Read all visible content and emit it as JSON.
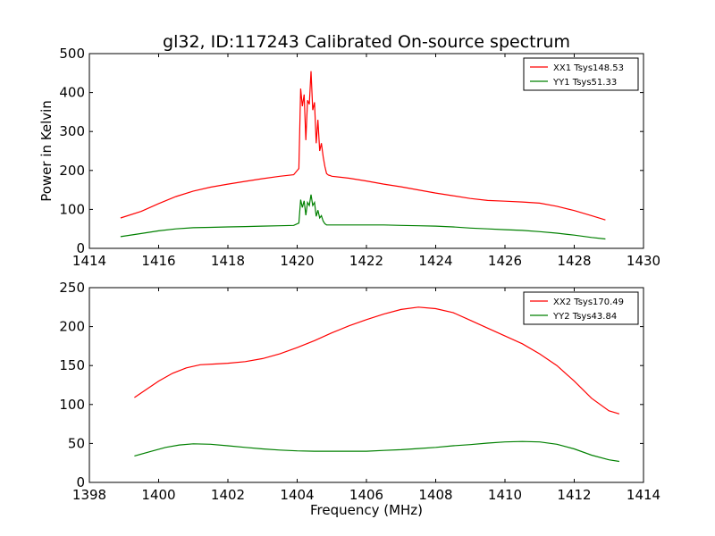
{
  "figure": {
    "title": "gl32, ID:117243 Calibrated On-source spectrum",
    "colors": {
      "xx": "#ff0000",
      "yy": "#008000",
      "axis": "#000000"
    }
  },
  "chart_data": [
    {
      "type": "line",
      "title": "gl32, ID:117243 Calibrated On-source spectrum",
      "xlabel": "",
      "ylabel": "Power in Kelvin",
      "xlim": [
        1414,
        1430
      ],
      "ylim": [
        0,
        500
      ],
      "xticks": [
        "1414",
        "1416",
        "1418",
        "1420",
        "1422",
        "1424",
        "1426",
        "1428",
        "1430"
      ],
      "yticks": [
        "0",
        "100",
        "200",
        "300",
        "400",
        "500"
      ],
      "grid": false,
      "legend_position": "top-right",
      "series": [
        {
          "name": "XX1 Tsys148.53",
          "color": "#ff0000",
          "x": [
            1414.9,
            1415.5,
            1416.0,
            1416.5,
            1417.0,
            1417.5,
            1418.0,
            1418.5,
            1419.0,
            1419.5,
            1419.9,
            1420.05,
            1420.1,
            1420.15,
            1420.2,
            1420.25,
            1420.3,
            1420.35,
            1420.4,
            1420.45,
            1420.5,
            1420.55,
            1420.6,
            1420.65,
            1420.7,
            1420.75,
            1420.8,
            1420.85,
            1420.9,
            1420.95,
            1421.0,
            1421.5,
            1422.0,
            1422.5,
            1423.0,
            1423.5,
            1424.0,
            1424.5,
            1425.0,
            1425.5,
            1426.0,
            1426.5,
            1427.0,
            1427.5,
            1428.0,
            1428.5,
            1428.9
          ],
          "y": [
            78,
            95,
            115,
            133,
            147,
            157,
            165,
            172,
            179,
            185,
            189,
            205,
            410,
            365,
            395,
            278,
            380,
            370,
            455,
            355,
            375,
            270,
            330,
            250,
            270,
            235,
            210,
            192,
            188,
            187,
            185,
            180,
            173,
            165,
            158,
            150,
            142,
            135,
            128,
            123,
            121,
            119,
            116,
            108,
            97,
            84,
            73
          ]
        },
        {
          "name": "YY1 Tsys51.33",
          "color": "#008000",
          "x": [
            1414.9,
            1415.5,
            1416.0,
            1416.5,
            1417.0,
            1417.5,
            1418.0,
            1418.5,
            1419.0,
            1419.5,
            1419.9,
            1420.05,
            1420.1,
            1420.15,
            1420.2,
            1420.25,
            1420.3,
            1420.35,
            1420.4,
            1420.45,
            1420.5,
            1420.55,
            1420.6,
            1420.65,
            1420.7,
            1420.75,
            1420.8,
            1420.85,
            1420.9,
            1421.0,
            1421.5,
            1422.0,
            1422.5,
            1423.0,
            1423.5,
            1424.0,
            1424.5,
            1425.0,
            1425.5,
            1426.0,
            1426.5,
            1427.0,
            1427.5,
            1428.0,
            1428.5,
            1428.9
          ],
          "y": [
            30,
            38,
            45,
            50,
            53,
            54,
            55,
            56,
            57,
            58,
            59,
            65,
            125,
            105,
            122,
            85,
            118,
            110,
            138,
            110,
            118,
            82,
            98,
            78,
            84,
            70,
            63,
            60,
            60,
            60,
            60,
            60,
            60,
            59,
            58,
            57,
            55,
            52,
            50,
            48,
            46,
            43,
            39,
            34,
            28,
            24
          ]
        }
      ]
    },
    {
      "type": "line",
      "title": "",
      "xlabel": "Frequency (MHz)",
      "ylabel": "",
      "xlim": [
        1398,
        1414
      ],
      "ylim": [
        0,
        250
      ],
      "xticks": [
        "1398",
        "1400",
        "1402",
        "1404",
        "1406",
        "1408",
        "1410",
        "1412",
        "1414"
      ],
      "yticks": [
        "0",
        "50",
        "100",
        "150",
        "200",
        "250"
      ],
      "grid": false,
      "legend_position": "top-right",
      "series": [
        {
          "name": "XX2 Tsys170.49",
          "color": "#ff0000",
          "x": [
            1399.3,
            1399.6,
            1400.0,
            1400.4,
            1400.8,
            1401.2,
            1401.6,
            1402.0,
            1402.5,
            1403.0,
            1403.5,
            1404.0,
            1404.5,
            1405.0,
            1405.5,
            1406.0,
            1406.5,
            1407.0,
            1407.5,
            1408.0,
            1408.5,
            1409.0,
            1409.5,
            1410.0,
            1410.5,
            1411.0,
            1411.5,
            1412.0,
            1412.5,
            1413.0,
            1413.3
          ],
          "y": [
            109,
            118,
            130,
            140,
            147,
            151,
            152,
            153,
            155,
            159,
            165,
            173,
            182,
            192,
            201,
            209,
            216,
            222,
            225,
            223,
            218,
            208,
            198,
            188,
            178,
            165,
            150,
            130,
            108,
            92,
            88
          ]
        },
        {
          "name": "YY2 Tsys43.84",
          "color": "#008000",
          "x": [
            1399.3,
            1399.8,
            1400.2,
            1400.6,
            1401.0,
            1401.5,
            1402.0,
            1402.5,
            1403.0,
            1403.5,
            1404.0,
            1404.5,
            1405.0,
            1405.5,
            1406.0,
            1406.5,
            1407.0,
            1407.5,
            1408.0,
            1408.5,
            1409.0,
            1409.5,
            1410.0,
            1410.5,
            1411.0,
            1411.5,
            1412.0,
            1412.5,
            1413.0,
            1413.3
          ],
          "y": [
            34,
            40,
            45,
            48,
            49.5,
            49,
            47,
            45,
            43,
            41.5,
            40.5,
            40,
            40,
            40,
            40,
            41,
            42,
            43.5,
            45,
            47,
            48.5,
            50.5,
            52,
            52.5,
            52,
            49,
            43,
            35,
            29,
            27
          ]
        }
      ]
    }
  ]
}
